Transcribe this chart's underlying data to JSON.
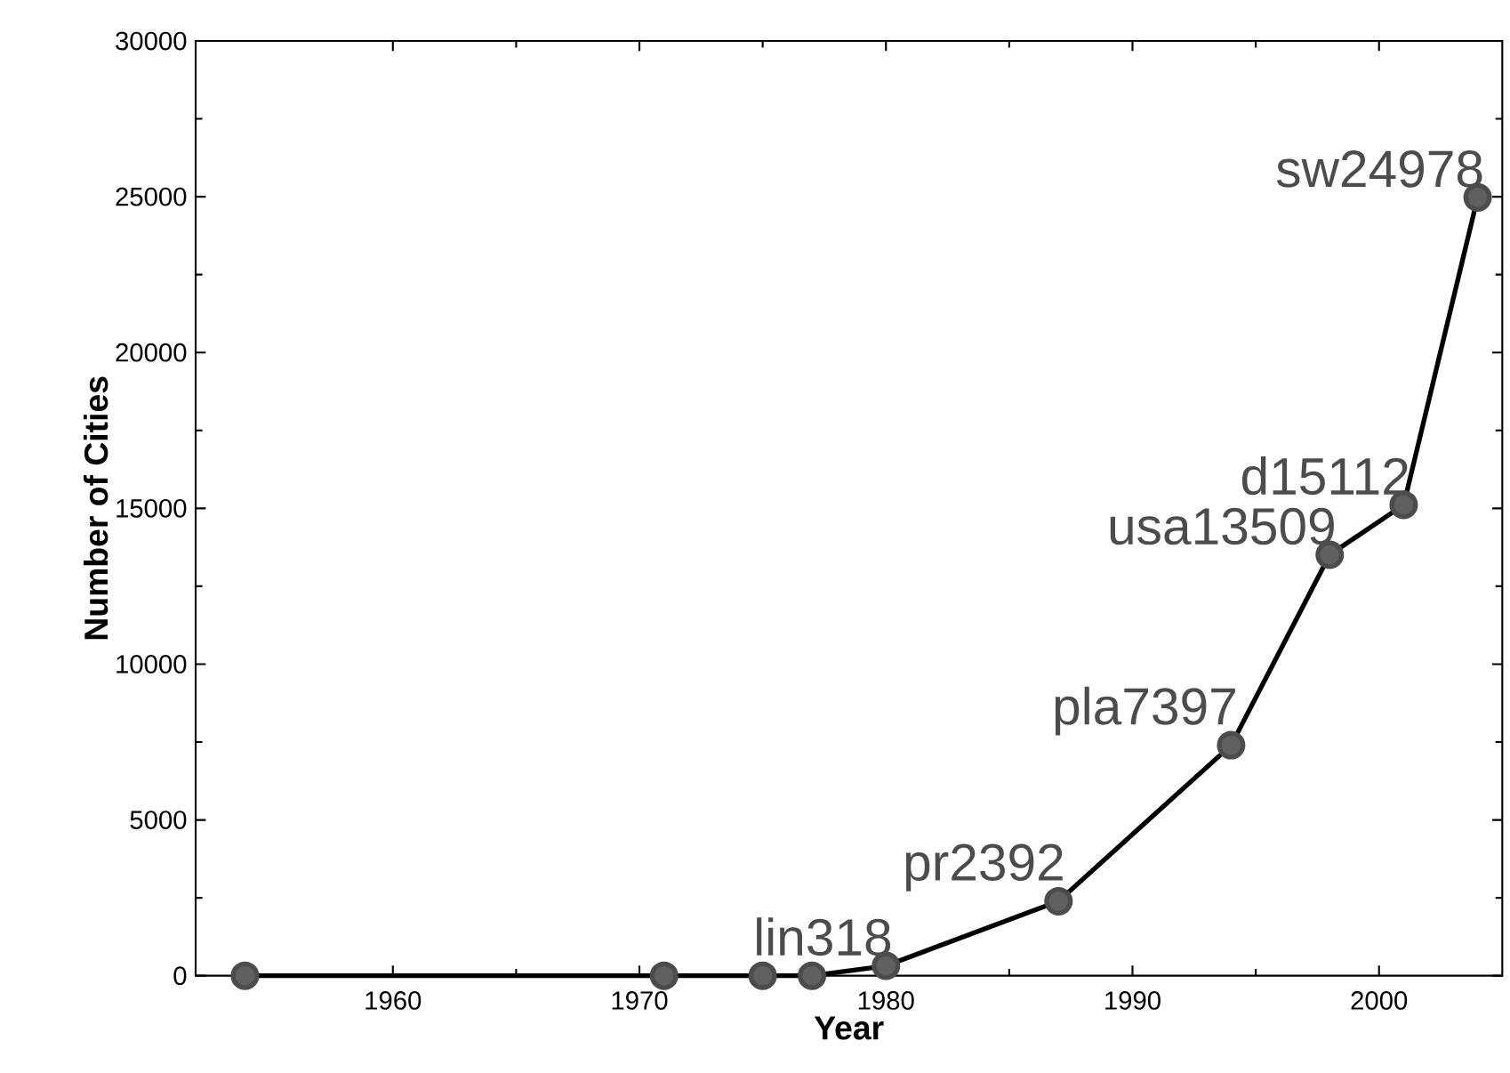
{
  "chart_data": {
    "type": "line",
    "xlabel": "Year",
    "ylabel": "Number of Cities",
    "x": [
      1954,
      1971,
      1975,
      1977,
      1980,
      1987,
      1994,
      1998,
      2001,
      2004
    ],
    "series": [
      {
        "color": "#000000",
        "values": [
          0,
          0,
          0,
          0,
          318,
          2392,
          7397,
          13509,
          15112,
          24978
        ]
      }
    ],
    "marker": "circle",
    "line_style": "solid",
    "xlim": [
      1952,
      2005
    ],
    "xticks": [
      1960,
      1970,
      1980,
      1990,
      2000
    ],
    "ylim": [
      0,
      30000
    ],
    "yticks": [
      0,
      5000,
      10000,
      15000,
      20000,
      25000,
      30000
    ],
    "annotations": [
      {
        "text": "lin318",
        "x": 1980,
        "y": 318
      },
      {
        "text": "pr2392",
        "x": 1987,
        "y": 2392
      },
      {
        "text": "pla7397",
        "x": 1994,
        "y": 7397
      },
      {
        "text": "usa13509",
        "x": 1998,
        "y": 13509
      },
      {
        "text": "d15112",
        "x": 2001,
        "y": 15112
      },
      {
        "text": "sw24978",
        "x": 2004,
        "y": 24978
      }
    ]
  }
}
